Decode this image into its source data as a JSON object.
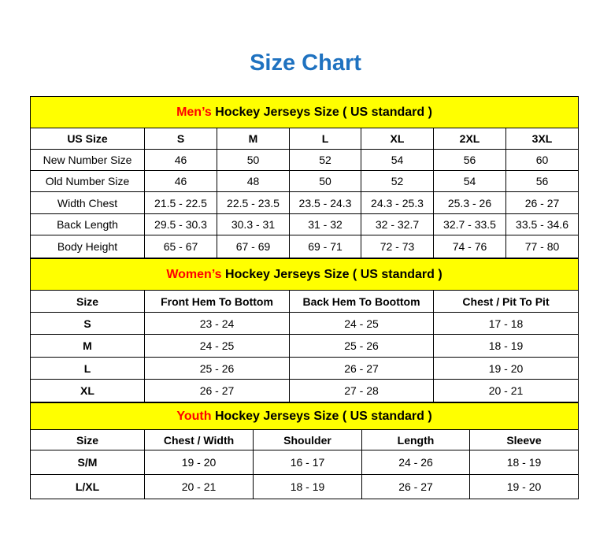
{
  "title": "Size Chart",
  "colors": {
    "title": "#1f72c0",
    "section_bg": "#ffff00",
    "highlight": "#ff0000"
  },
  "men": {
    "section": {
      "highlight": "Men’s",
      "rest": " Hockey Jerseys Size ( US standard )"
    },
    "headers": [
      "US Size",
      "S",
      "M",
      "L",
      "XL",
      "2XL",
      "3XL"
    ],
    "rows": [
      [
        "New Number Size",
        "46",
        "50",
        "52",
        "54",
        "56",
        "60"
      ],
      [
        "Old Number Size",
        "46",
        "48",
        "50",
        "52",
        "54",
        "56"
      ],
      [
        "Width Chest",
        "21.5 - 22.5",
        "22.5 - 23.5",
        "23.5 - 24.3",
        "24.3 - 25.3",
        "25.3 - 26",
        "26 - 27"
      ],
      [
        "Back Length",
        "29.5 - 30.3",
        "30.3 - 31",
        "31 - 32",
        "32 - 32.7",
        "32.7 - 33.5",
        "33.5 - 34.6"
      ],
      [
        "Body Height",
        "65 - 67",
        "67 - 69",
        "69 - 71",
        "72 - 73",
        "74 - 76",
        "77 - 80"
      ]
    ]
  },
  "women": {
    "section": {
      "highlight": "Women’s",
      "rest": " Hockey Jerseys Size ( US standard )"
    },
    "headers": [
      "Size",
      "Front Hem To Bottom",
      "Back Hem To Boottom",
      "Chest / Pit To Pit"
    ],
    "rows": [
      [
        "S",
        "23 - 24",
        "24 - 25",
        "17 - 18"
      ],
      [
        "M",
        "24 - 25",
        "25 - 26",
        "18 - 19"
      ],
      [
        "L",
        "25 - 26",
        "26 - 27",
        "19 - 20"
      ],
      [
        "XL",
        "26 - 27",
        "27 - 28",
        "20 - 21"
      ]
    ]
  },
  "youth": {
    "section": {
      "highlight": "Youth",
      "rest": " Hockey Jerseys Size ( US standard )"
    },
    "headers": [
      "Size",
      "Chest / Width",
      "Shoulder",
      "Length",
      "Sleeve"
    ],
    "rows": [
      [
        "S/M",
        "19 - 20",
        "16 - 17",
        "24 - 26",
        "18 - 19"
      ],
      [
        "L/XL",
        "20 - 21",
        "18 - 19",
        "26 - 27",
        "19 - 20"
      ]
    ]
  }
}
